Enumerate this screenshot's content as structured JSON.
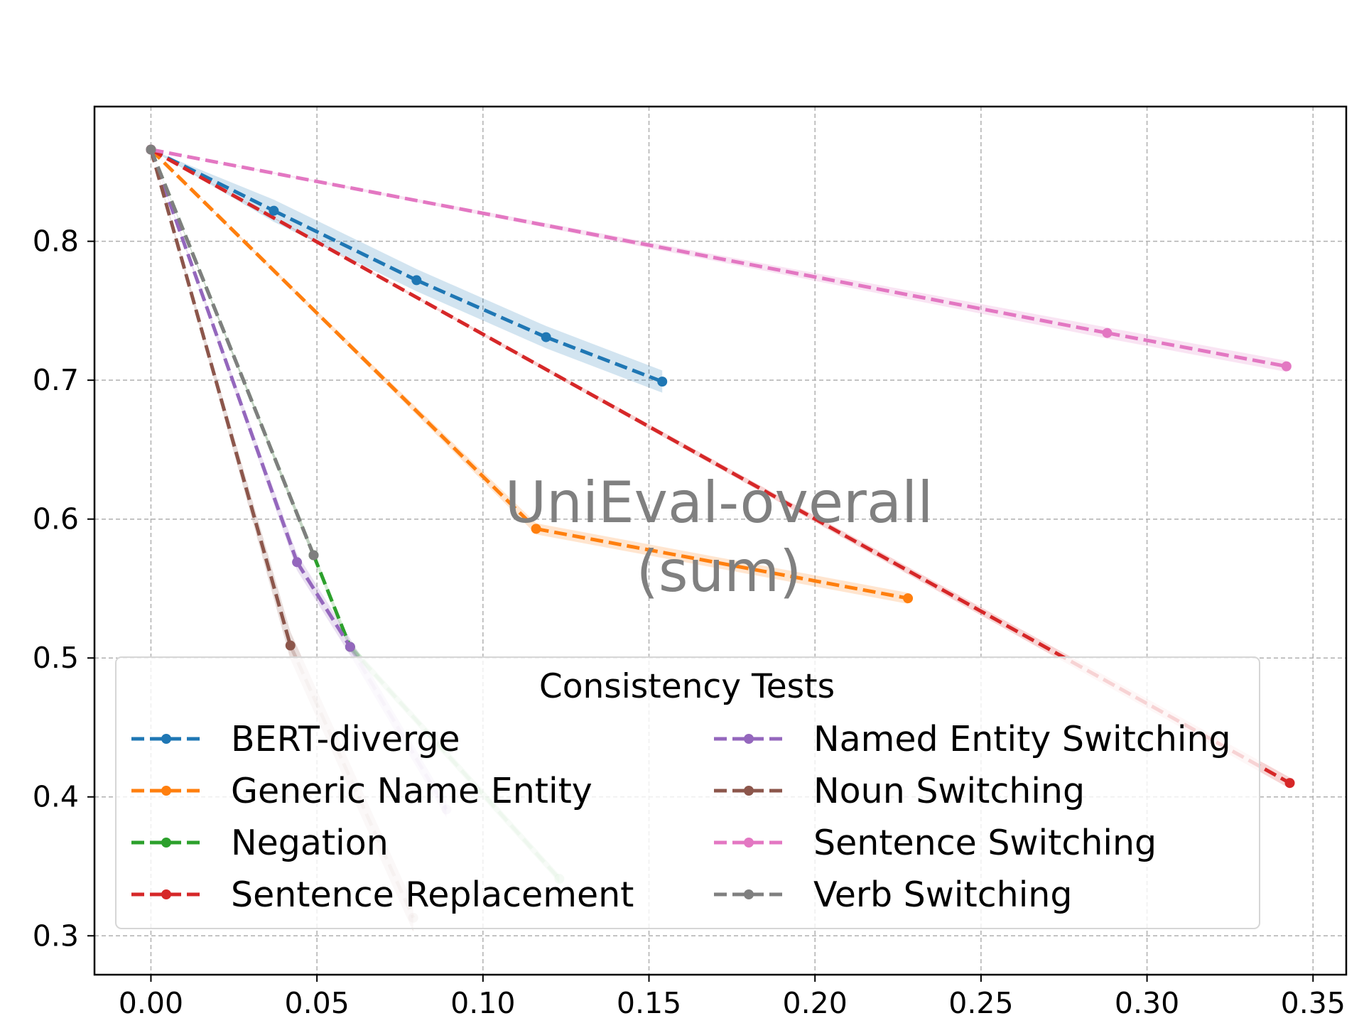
{
  "chart_data": {
    "type": "line",
    "title": "",
    "xlabel": "",
    "ylabel": "",
    "xlim": [
      -0.017,
      0.36
    ],
    "ylim": [
      0.272,
      0.897
    ],
    "xticks": [
      "0.00",
      "0.05",
      "0.10",
      "0.15",
      "0.20",
      "0.25",
      "0.30",
      "0.35"
    ],
    "yticks": [
      "0.3",
      "0.4",
      "0.5",
      "0.6",
      "0.7",
      "0.8"
    ],
    "grid": true,
    "annotation": [
      "UniEval-overall",
      "(sum)"
    ],
    "legend": {
      "title": "Consistency Tests",
      "placement": "lower-center",
      "columns": 2
    },
    "series": [
      {
        "name": "BERT-diverge",
        "color": "#1f77b4",
        "band": 0.008,
        "fade_after": null,
        "x": [
          0,
          0.037,
          0.08,
          0.119,
          0.154
        ],
        "y": [
          0.866,
          0.822,
          0.772,
          0.731,
          0.699
        ]
      },
      {
        "name": "Generic Name Entity",
        "color": "#ff7f0e",
        "band": 0.004,
        "fade_after": null,
        "x": [
          0,
          0.116,
          0.228
        ],
        "y": [
          0.866,
          0.593,
          0.543
        ]
      },
      {
        "name": "Negation",
        "color": "#2ca02c",
        "band": 0.003,
        "fade_after": 3,
        "x": [
          0,
          0.049,
          0.06,
          0.123
        ],
        "y": [
          0.866,
          0.574,
          0.508,
          0.341
        ]
      },
      {
        "name": "Sentence Replacement",
        "color": "#d62728",
        "band": 0.004,
        "fade_after": null,
        "x": [
          0,
          0.343
        ],
        "y": [
          0.866,
          0.41
        ]
      },
      {
        "name": "Named Entity Switching",
        "color": "#9467bd",
        "band": 0.006,
        "fade_after": 3,
        "x": [
          0,
          0.044,
          0.06,
          0.089
        ],
        "y": [
          0.866,
          0.569,
          0.508,
          0.391
        ]
      },
      {
        "name": "Noun Switching",
        "color": "#8c564b",
        "band": 0.01,
        "fade_after": 2,
        "x": [
          0,
          0.042,
          0.079
        ],
        "y": [
          0.866,
          0.509,
          0.313
        ]
      },
      {
        "name": "Sentence Switching",
        "color": "#e377c2",
        "band": 0.004,
        "fade_after": null,
        "x": [
          0,
          0.288,
          0.342
        ],
        "y": [
          0.866,
          0.734,
          0.71
        ]
      },
      {
        "name": "Verb Switching",
        "color": "#7f7f7f",
        "band": 0.003,
        "fade_after": null,
        "x": [
          0,
          0.049
        ],
        "y": [
          0.866,
          0.574
        ]
      }
    ]
  }
}
